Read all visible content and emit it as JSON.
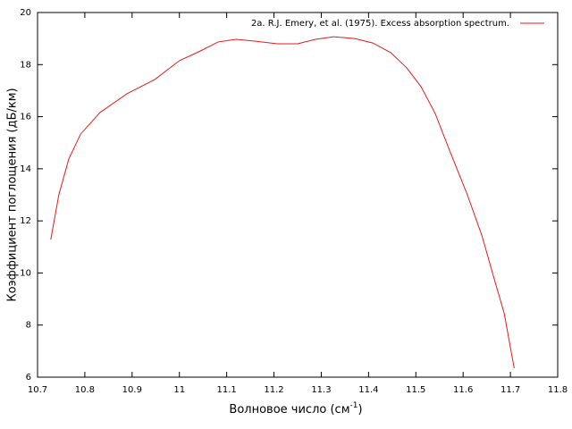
{
  "chart_data": {
    "type": "line",
    "x_label": "Волновое число (см",
    "x_label_sup": "-1",
    "x_label_end": ")",
    "y_label": "Коэффициент поглощения (дБ/км)",
    "legend_position": "top-right",
    "series": [
      {
        "name": "2a. R.J. Emery, et al. (1975). Excess absorption spectrum.",
        "color": "#e41a1c",
        "x": [
          10.728,
          10.745,
          10.766,
          10.791,
          10.832,
          10.889,
          10.948,
          11.0,
          11.044,
          11.082,
          11.12,
          11.159,
          11.207,
          11.25,
          11.288,
          11.326,
          11.371,
          11.409,
          11.447,
          11.481,
          11.511,
          11.541,
          11.571,
          11.609,
          11.64,
          11.664,
          11.687,
          11.708
        ],
        "values": [
          11.28,
          13.0,
          14.37,
          15.33,
          16.16,
          16.88,
          17.43,
          18.15,
          18.52,
          18.87,
          18.97,
          18.9,
          18.8,
          18.8,
          18.97,
          19.07,
          19.0,
          18.83,
          18.46,
          17.87,
          17.15,
          16.12,
          14.72,
          13.0,
          11.42,
          9.88,
          8.44,
          6.34
        ]
      }
    ],
    "xlim": [
      10.7,
      11.8
    ],
    "xticks": [
      10.7,
      10.8,
      10.9,
      11,
      11.1,
      11.2,
      11.3,
      11.4,
      11.5,
      11.6,
      11.7,
      11.8
    ],
    "ylim": [
      6,
      20
    ],
    "yticks": [
      6,
      8,
      10,
      12,
      14,
      16,
      18,
      20
    ]
  }
}
